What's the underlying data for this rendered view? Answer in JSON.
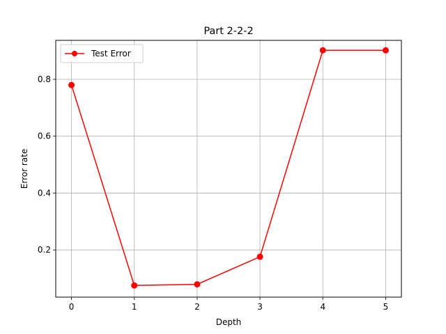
{
  "chart_data": {
    "type": "line",
    "title": "Part 2-2-2",
    "xlabel": "Depth",
    "ylabel": "Error rate",
    "xlim": [
      -0.25,
      5.25
    ],
    "ylim": [
      0.034,
      0.937
    ],
    "x_ticks": [
      0,
      1,
      2,
      3,
      4,
      5
    ],
    "x_tick_labels": [
      "0",
      "1",
      "2",
      "3",
      "4",
      "5"
    ],
    "y_ticks": [
      0.2,
      0.4,
      0.6,
      0.8
    ],
    "y_tick_labels": [
      "0.2",
      "0.4",
      "0.6",
      "0.8"
    ],
    "grid": true,
    "legend": {
      "position": "top-left",
      "entries": [
        "Test Error"
      ]
    },
    "series": [
      {
        "name": "Test Error",
        "color": "#ff0000",
        "marker": "circle",
        "x": [
          0,
          1,
          2,
          3,
          4,
          5
        ],
        "values": [
          0.78,
          0.075,
          0.079,
          0.176,
          0.902,
          0.902
        ]
      }
    ]
  }
}
